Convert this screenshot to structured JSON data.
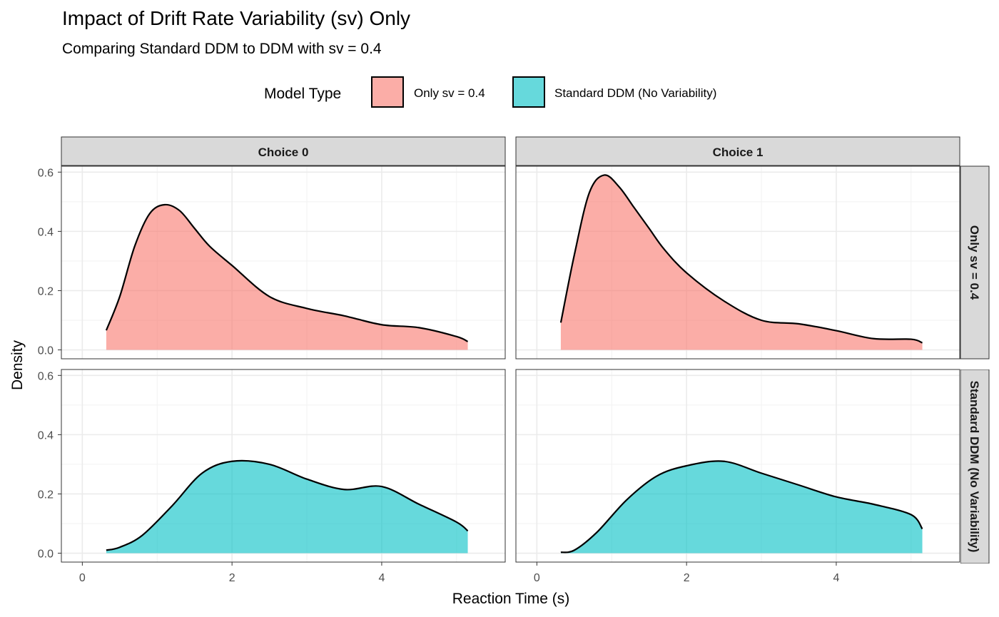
{
  "chart_data": {
    "type": "area",
    "title": "Impact of Drift Rate Variability (sv) Only",
    "subtitle": "Comparing Standard DDM to DDM with sv = 0.4",
    "xlabel": "Reaction Time (s)",
    "ylabel": "Density",
    "xlim": [
      -0.28,
      5.65
    ],
    "ylim": [
      -0.03,
      0.62
    ],
    "x_ticks": [
      0,
      2,
      4
    ],
    "x_tick_labels": [
      "0",
      "2",
      "4"
    ],
    "y_ticks": [
      0.0,
      0.2,
      0.4,
      0.6
    ],
    "y_tick_labels": [
      "0.0",
      "0.2",
      "0.4",
      "0.6"
    ],
    "grid": true,
    "legend": {
      "title": "Model Type",
      "position": "top",
      "entries": [
        {
          "label": "Only sv = 0.4",
          "color": "#F8766D"
        },
        {
          "label": "Standard DDM (No Variability)",
          "color": "#00BFC4"
        }
      ]
    },
    "facet_columns": [
      "Choice 0",
      "Choice 1"
    ],
    "facet_rows": [
      "Only sv = 0.4",
      "Standard DDM (No Variability)"
    ],
    "fill_alpha": 0.6,
    "panels": [
      {
        "column": "Choice 0",
        "row": "Only sv = 0.4",
        "series": "Only sv = 0.4",
        "x": [
          0.32,
          0.5,
          0.7,
          0.9,
          1.1,
          1.3,
          1.5,
          1.7,
          2.0,
          2.5,
          3.0,
          3.5,
          4.0,
          4.5,
          5.0,
          5.15
        ],
        "y": [
          0.066,
          0.18,
          0.35,
          0.46,
          0.49,
          0.47,
          0.41,
          0.35,
          0.285,
          0.18,
          0.14,
          0.115,
          0.085,
          0.075,
          0.045,
          0.028
        ]
      },
      {
        "column": "Choice 1",
        "row": "Only sv = 0.4",
        "series": "Only sv = 0.4",
        "x": [
          0.32,
          0.5,
          0.7,
          0.9,
          1.1,
          1.3,
          1.5,
          1.7,
          2.0,
          2.5,
          3.0,
          3.5,
          4.0,
          4.5,
          5.0,
          5.15
        ],
        "y": [
          0.092,
          0.32,
          0.53,
          0.59,
          0.55,
          0.48,
          0.41,
          0.34,
          0.26,
          0.165,
          0.1,
          0.088,
          0.065,
          0.038,
          0.036,
          0.024
        ]
      },
      {
        "column": "Choice 0",
        "row": "Standard DDM (No Variability)",
        "series": "Standard DDM (No Variability)",
        "x": [
          0.32,
          0.5,
          0.8,
          1.2,
          1.6,
          2.0,
          2.5,
          3.0,
          3.5,
          4.0,
          4.5,
          5.0,
          5.15
        ],
        "y": [
          0.01,
          0.02,
          0.06,
          0.16,
          0.27,
          0.31,
          0.3,
          0.25,
          0.215,
          0.225,
          0.165,
          0.105,
          0.075
        ]
      },
      {
        "column": "Choice 1",
        "row": "Standard DDM (No Variability)",
        "series": "Standard DDM (No Variability)",
        "x": [
          0.32,
          0.5,
          0.8,
          1.2,
          1.6,
          2.0,
          2.5,
          3.0,
          3.5,
          4.0,
          4.5,
          5.0,
          5.15
        ],
        "y": [
          0.003,
          0.01,
          0.07,
          0.18,
          0.26,
          0.295,
          0.31,
          0.27,
          0.23,
          0.19,
          0.165,
          0.13,
          0.082
        ]
      }
    ]
  }
}
